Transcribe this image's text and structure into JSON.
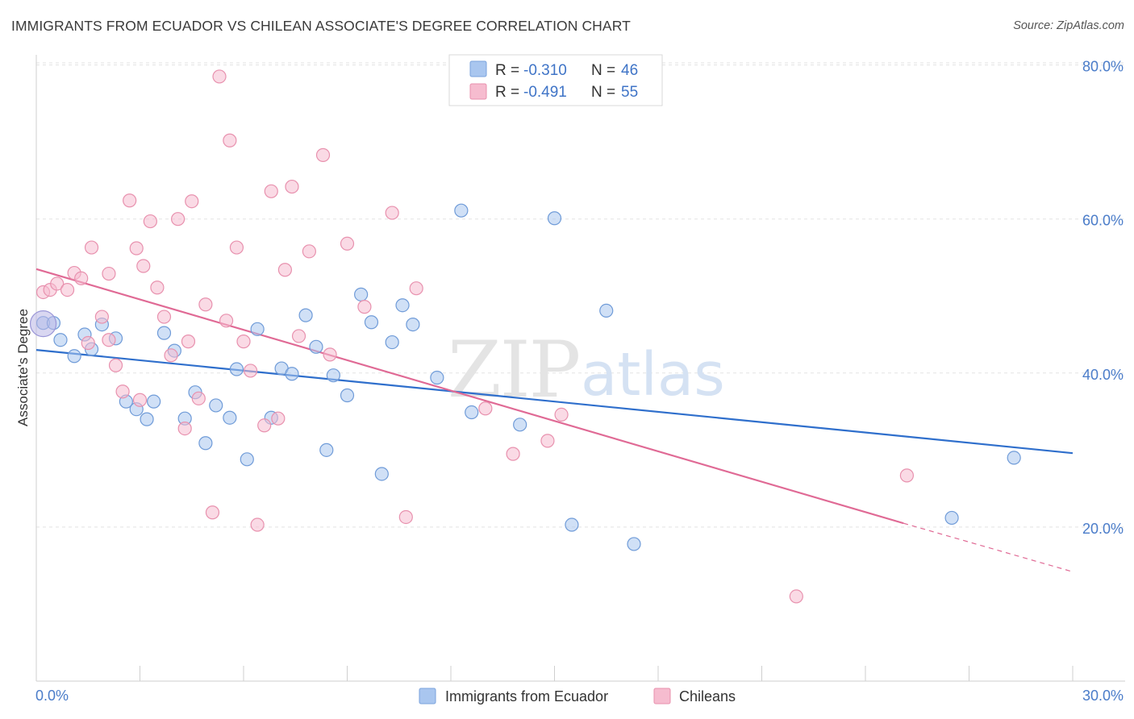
{
  "title": "IMMIGRANTS FROM ECUADOR VS CHILEAN ASSOCIATE'S DEGREE CORRELATION CHART",
  "source": "Source: ZipAtlas.com",
  "watermark": {
    "part1": "ZIP",
    "part2": "atlas"
  },
  "legend": {
    "rows": [
      {
        "r_label": "R =",
        "r_value": "-0.310",
        "n_label": "N =",
        "n_value": "46",
        "color": "#a9c6ef",
        "stroke": "#7aa3dc"
      },
      {
        "r_label": "R =",
        "r_value": "-0.491",
        "n_label": "N =",
        "n_value": "55",
        "color": "#f6bccf",
        "stroke": "#e891ae"
      }
    ]
  },
  "chart_data": {
    "type": "scatter",
    "title": "IMMIGRANTS FROM ECUADOR VS CHILEAN ASSOCIATE'S DEGREE CORRELATION CHART",
    "xlabel": "",
    "ylabel": "Associate's Degree",
    "xlim": [
      0,
      30
    ],
    "ylim": [
      0,
      82
    ],
    "x_tick_labels": [
      "0.0%",
      "30.0%"
    ],
    "y_ticks": [
      20,
      40,
      60,
      80
    ],
    "y_tick_labels": [
      "20.0%",
      "40.0%",
      "60.0%",
      "80.0%"
    ],
    "grid": true,
    "legend_position": "top-center",
    "series": [
      {
        "name": "Immigrants from Ecuador",
        "color": "#a9c6ef",
        "stroke": "#6f9bd8",
        "line_color": "#2f6fcc",
        "trend": {
          "x0": 0,
          "y0": 43.0,
          "x1": 30,
          "y1": 29.6
        },
        "points": [
          [
            0.2,
            46.5
          ],
          [
            0.5,
            46.5
          ],
          [
            0.7,
            44.3
          ],
          [
            1.1,
            42.2
          ],
          [
            1.4,
            45.0
          ],
          [
            1.6,
            43.1
          ],
          [
            1.9,
            46.3
          ],
          [
            2.3,
            44.5
          ],
          [
            2.6,
            36.3
          ],
          [
            2.9,
            35.3
          ],
          [
            3.2,
            34.0
          ],
          [
            3.4,
            36.3
          ],
          [
            3.7,
            45.2
          ],
          [
            4.0,
            42.9
          ],
          [
            4.3,
            34.1
          ],
          [
            4.6,
            37.5
          ],
          [
            4.9,
            30.9
          ],
          [
            5.2,
            35.8
          ],
          [
            5.6,
            34.2
          ],
          [
            5.8,
            40.5
          ],
          [
            6.1,
            28.8
          ],
          [
            6.4,
            45.7
          ],
          [
            6.8,
            34.2
          ],
          [
            7.1,
            40.6
          ],
          [
            7.4,
            39.9
          ],
          [
            7.8,
            47.5
          ],
          [
            8.1,
            43.4
          ],
          [
            8.4,
            30.0
          ],
          [
            8.6,
            39.7
          ],
          [
            9.0,
            37.1
          ],
          [
            9.4,
            50.2
          ],
          [
            9.7,
            46.6
          ],
          [
            10.0,
            26.9
          ],
          [
            10.3,
            44.0
          ],
          [
            10.6,
            48.8
          ],
          [
            10.9,
            46.3
          ],
          [
            11.6,
            39.4
          ],
          [
            12.3,
            61.1
          ],
          [
            12.6,
            34.9
          ],
          [
            14.0,
            33.3
          ],
          [
            15.0,
            60.1
          ],
          [
            15.5,
            20.3
          ],
          [
            16.5,
            48.1
          ],
          [
            17.3,
            17.8
          ],
          [
            26.5,
            21.2
          ],
          [
            28.3,
            29.0
          ]
        ]
      },
      {
        "name": "Chileans",
        "color": "#f6bccf",
        "stroke": "#e891ae",
        "line_color": "#e06a95",
        "trend": {
          "x0": 0,
          "y0": 53.5,
          "x1": 25.1,
          "y1": 20.5,
          "x_dash_end": 30,
          "y_dash_end": 14.2
        },
        "points": [
          [
            0.2,
            50.5
          ],
          [
            0.4,
            50.8
          ],
          [
            0.6,
            51.6
          ],
          [
            0.9,
            50.8
          ],
          [
            1.1,
            53.0
          ],
          [
            1.3,
            52.3
          ],
          [
            1.5,
            43.9
          ],
          [
            1.6,
            56.3
          ],
          [
            1.9,
            47.3
          ],
          [
            2.1,
            52.9
          ],
          [
            2.3,
            41.0
          ],
          [
            2.5,
            37.6
          ],
          [
            2.7,
            62.4
          ],
          [
            2.9,
            56.2
          ],
          [
            3.1,
            53.9
          ],
          [
            3.3,
            59.7
          ],
          [
            3.5,
            51.1
          ],
          [
            3.7,
            47.3
          ],
          [
            3.9,
            42.3
          ],
          [
            4.1,
            60.0
          ],
          [
            4.3,
            32.8
          ],
          [
            4.5,
            62.3
          ],
          [
            4.7,
            36.7
          ],
          [
            4.9,
            48.9
          ],
          [
            5.1,
            21.9
          ],
          [
            5.3,
            78.5
          ],
          [
            5.5,
            46.8
          ],
          [
            5.6,
            70.2
          ],
          [
            5.8,
            56.3
          ],
          [
            6.0,
            44.1
          ],
          [
            6.2,
            40.3
          ],
          [
            6.4,
            20.3
          ],
          [
            6.6,
            33.2
          ],
          [
            6.8,
            63.6
          ],
          [
            7.0,
            34.1
          ],
          [
            7.2,
            53.4
          ],
          [
            7.4,
            64.2
          ],
          [
            7.6,
            44.8
          ],
          [
            7.9,
            55.8
          ],
          [
            8.3,
            68.3
          ],
          [
            8.5,
            42.4
          ],
          [
            9.0,
            56.8
          ],
          [
            9.5,
            48.6
          ],
          [
            10.3,
            60.8
          ],
          [
            10.7,
            21.3
          ],
          [
            11.0,
            51.0
          ],
          [
            13.0,
            35.4
          ],
          [
            13.8,
            29.5
          ],
          [
            14.8,
            31.2
          ],
          [
            15.2,
            34.6
          ],
          [
            22.0,
            11.0
          ],
          [
            25.2,
            26.7
          ],
          [
            2.1,
            44.3
          ],
          [
            4.4,
            44.1
          ],
          [
            3.0,
            36.5
          ]
        ]
      }
    ]
  }
}
